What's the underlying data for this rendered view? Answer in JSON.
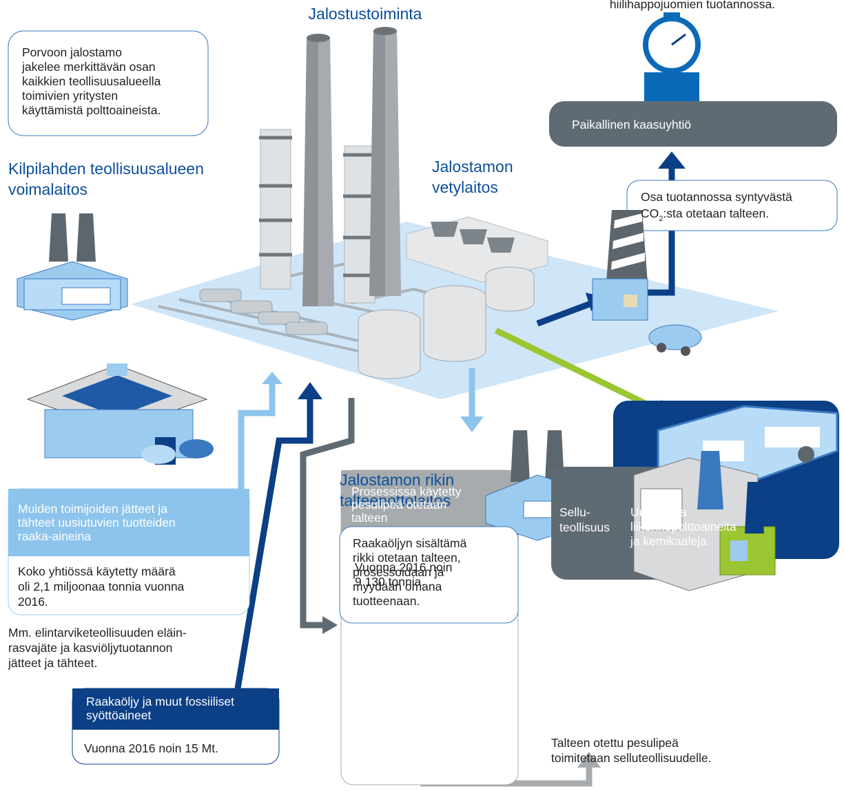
{
  "top_caption": "hiilihappojuomien tuotannossa.",
  "title": "Jalostustoiminta",
  "intro_box": [
    "Porvoon jalostamo",
    "jakelee merkittävän osan",
    "kaikkien teollisuusalueella",
    "toimivien yritysten",
    "käyttämistä polttoaineista."
  ],
  "power_plant": [
    "Kilpilahden teollisuusalueen",
    "voimalaitos"
  ],
  "hydrogen_plant": [
    "Jalostamon",
    "vetylaitos"
  ],
  "gas_company": "Paikallinen kaasuyhtiö",
  "co2": {
    "line1": "Osa tuotannossa syntyvästä",
    "co": "CO",
    "sub": "2",
    "rest": ":sta otetaan talteen."
  },
  "renewables": {
    "header": [
      "Muiden toimijoiden jätteet ja",
      "tähteet uusiutuvien tuotteiden",
      "raaka-aineina"
    ],
    "body": [
      "Koko yhtiössä käytetty määrä",
      "oli 2,1 miljoonaa tonnia vuonna",
      "2016."
    ],
    "note": [
      "Mm. elintarviketeollisuuden eläin-",
      "rasvajäte ja kasviöljytuotannon",
      "jätteet ja tähteet."
    ]
  },
  "sulfur": {
    "title": [
      "Jalostamon rikin",
      "talteenottolaitos"
    ],
    "body": [
      "Raakaöljyn sisältämä",
      "rikki otetaan talteen,",
      "prosessoidaan ja",
      "myydään omana",
      "tuotteenaan."
    ]
  },
  "products": [
    "Uusiutuvia",
    "liikennepolttoaineita",
    "ja kemikaaleja"
  ],
  "lye": {
    "header": [
      "Prosessissa käytetty",
      "pesulipeä otetaan",
      "talteen"
    ],
    "body": [
      "Vuonna 2016 noin",
      "9 130 tonnia."
    ]
  },
  "pulp": {
    "label": [
      "Sellu-",
      "teollisuus"
    ],
    "note": [
      "Talteen otettu pesulipeä",
      "toimitetaan selluteollisuudelle."
    ]
  },
  "crude": {
    "header": [
      "Raakaöljy ja muut fossiiliset",
      "syöttöaineet"
    ],
    "body": "Vuonna 2016 noin 15 Mt."
  }
}
